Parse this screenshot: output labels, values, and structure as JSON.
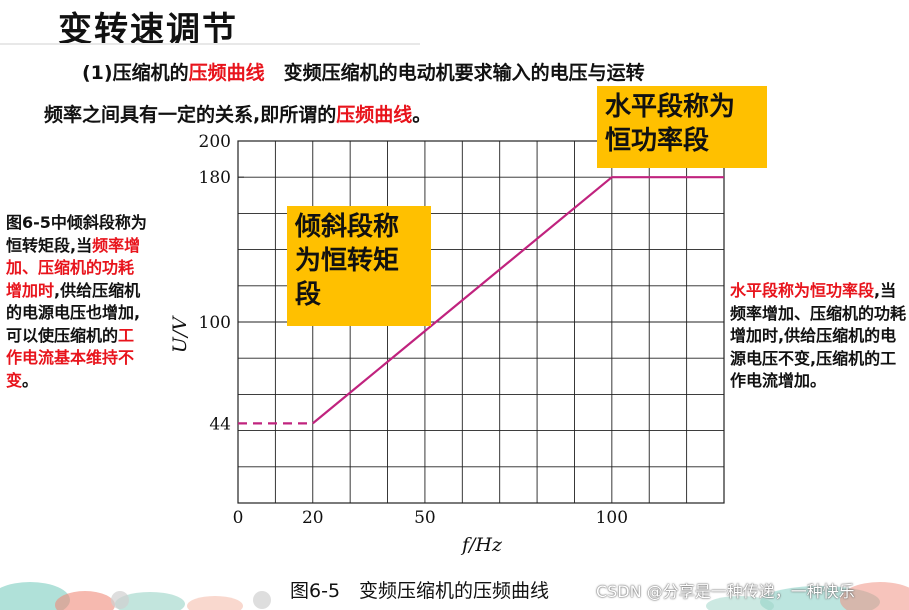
{
  "slide": {
    "title": "变转速调节",
    "intro_line1": {
      "lead": "(1)压缩机的",
      "term": "压频曲线",
      "rest": "　变频压缩机的电动机要求输入的电压与运转"
    },
    "intro_line2": {
      "lead": "频率之间具有一定的关系,即所谓的",
      "term": "压频曲线",
      "end": "。"
    }
  },
  "callouts": {
    "top_right": "水平段称为恒功率段",
    "middle": "倾斜段称为恒转矩段"
  },
  "left_note": {
    "part1": "图6-5中倾斜段称为恒转矩段,当",
    "red1": "频率增加、压缩机的功耗增加时",
    "part2": ",供给压缩机的电源电压也增加,可以使压缩机的",
    "red2": "工作电流基本维持不变",
    "part3": "。"
  },
  "right_note": {
    "red1": "水平段称为恒功率段",
    "part1": ",当频率增加、压缩机的功耗增加时,供给压缩机的电源电压不变,压缩机的工作电流增加。"
  },
  "chart_data": {
    "type": "line",
    "xlabel": "f/Hz",
    "ylabel": "U/V",
    "x_ticks": [
      0,
      20,
      50,
      100
    ],
    "y_ticks": [
      44,
      100,
      180,
      200
    ],
    "xlim": [
      0,
      130
    ],
    "ylim": [
      0,
      200
    ],
    "grid": true,
    "series": [
      {
        "style": "dashed",
        "x": [
          0,
          20
        ],
        "y": [
          44,
          44
        ]
      },
      {
        "style": "solid",
        "x": [
          20,
          100,
          130
        ],
        "y": [
          44,
          180,
          180
        ]
      }
    ],
    "line_color": "#c0237e"
  },
  "figure": {
    "caption": "图6-5　变频压缩机的压频曲线"
  },
  "watermark": "CSDN @分享是一种传递，一种快乐"
}
